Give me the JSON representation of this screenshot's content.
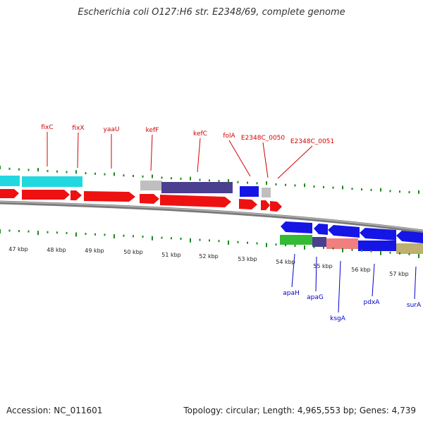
{
  "title": "Escherichia coli O127:H6 str. E2348/69, complete genome",
  "footer": {
    "accession": "Accession: NC_011601",
    "summary": "Topology: circular; Length: 4,965,553 bp; Genes: 4,739"
  },
  "colors": {
    "forward_label": "#d40000",
    "reverse_label": "#0000cc",
    "tick": "#1a8a1a",
    "backbone": "#808080"
  },
  "scale": {
    "unit": "kbp",
    "labels": [
      "47 kbp",
      "48 kbp",
      "49 kbp",
      "50 kbp",
      "51 kbp",
      "52 kbp",
      "53 kbp",
      "54 kbp",
      "55 kbp",
      "56 kbp",
      "57 kbp"
    ]
  },
  "forward_genes": [
    "fixC",
    "fixX",
    "yaaU",
    "kefF",
    "kefC",
    "folA",
    "E2348C_0050",
    "E2348C_0051"
  ],
  "reverse_genes": [
    "apaH",
    "apaG",
    "ksgA",
    "pdxA",
    "surA"
  ],
  "feature_track_colors": [
    "cyan",
    "gray",
    "dark-slate-blue",
    "blue",
    "green",
    "salmon",
    "khaki"
  ]
}
